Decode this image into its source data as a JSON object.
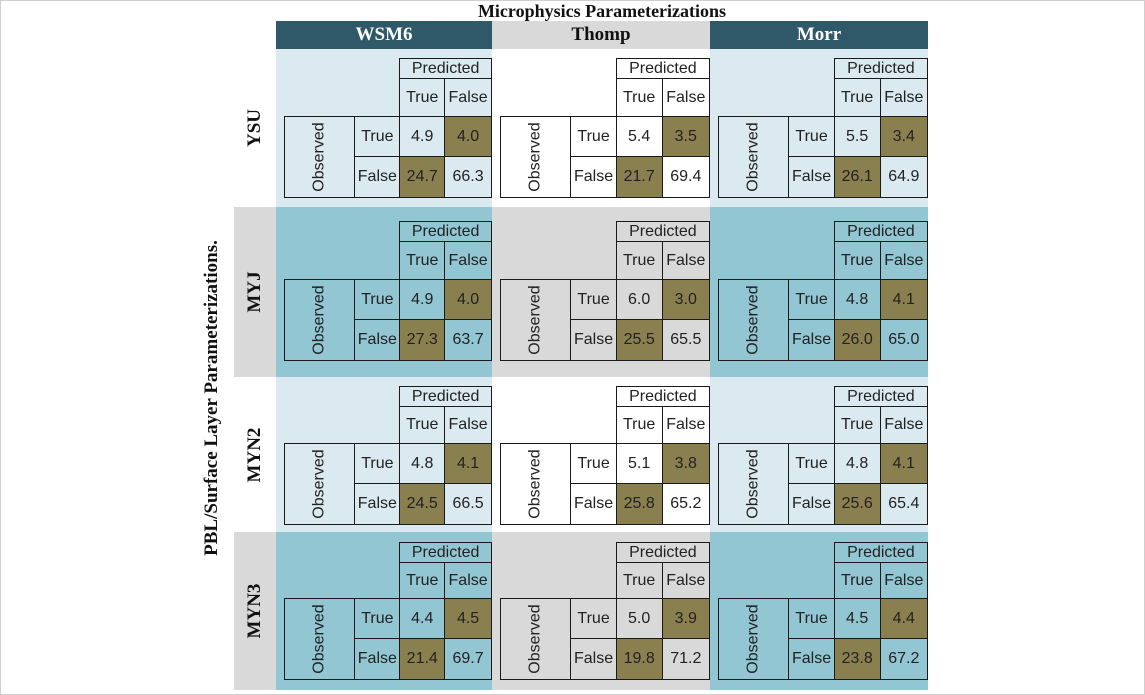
{
  "title": "Microphysics Parameterizations",
  "y_axis_title": "PBL/Surface Layer Parameterizations.",
  "columns": [
    "WSM6",
    "Thomp",
    "Morr"
  ],
  "rows": [
    "YSU",
    "MYJ",
    "MYN2",
    "MYN3"
  ],
  "matrix_labels": {
    "predicted": "Predicted",
    "observed": "Observed",
    "true": "True",
    "false": "False"
  },
  "colors": {
    "header_dark": "#2f5868",
    "header_light": "#d9d9d9",
    "panel_light_blue": "#daeaf0",
    "panel_medium_blue": "#92c6d3",
    "panel_white": "#ffffff",
    "panel_gray": "#d9d9d9",
    "highlight_olive": "#8a7f4f"
  },
  "matrices": [
    [
      {
        "tt": "4.9",
        "tf": "4.0",
        "ft": "24.7",
        "ff": "66.3"
      },
      {
        "tt": "5.4",
        "tf": "3.5",
        "ft": "21.7",
        "ff": "69.4"
      },
      {
        "tt": "5.5",
        "tf": "3.4",
        "ft": "26.1",
        "ff": "64.9"
      }
    ],
    [
      {
        "tt": "4.9",
        "tf": "4.0",
        "ft": "27.3",
        "ff": "63.7"
      },
      {
        "tt": "6.0",
        "tf": "3.0",
        "ft": "25.5",
        "ff": "65.5"
      },
      {
        "tt": "4.8",
        "tf": "4.1",
        "ft": "26.0",
        "ff": "65.0"
      }
    ],
    [
      {
        "tt": "4.8",
        "tf": "4.1",
        "ft": "24.5",
        "ff": "66.5"
      },
      {
        "tt": "5.1",
        "tf": "3.8",
        "ft": "25.8",
        "ff": "65.2"
      },
      {
        "tt": "4.8",
        "tf": "4.1",
        "ft": "25.6",
        "ff": "65.4"
      }
    ],
    [
      {
        "tt": "4.4",
        "tf": "4.5",
        "ft": "21.4",
        "ff": "69.7"
      },
      {
        "tt": "5.0",
        "tf": "3.9",
        "ft": "19.8",
        "ff": "71.2"
      },
      {
        "tt": "4.5",
        "tf": "4.4",
        "ft": "23.8",
        "ff": "67.2"
      }
    ]
  ]
}
